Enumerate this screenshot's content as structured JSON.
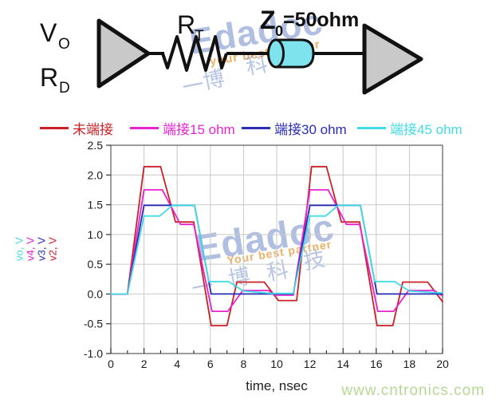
{
  "watermarks": {
    "brand": "Edadoc",
    "tagline_top": "your best partner",
    "tagline_chart": "Your best partner",
    "chinese_chars": [
      "一",
      "博",
      "科",
      "技"
    ],
    "site_link": "www.cntronics.com"
  },
  "circuit": {
    "driver_label_main": "V",
    "driver_label_sub": "O",
    "driver_res_main": "R",
    "driver_res_sub": "D",
    "series_res_main": "R",
    "series_res_sub": "T",
    "tline_main": "Z",
    "tline_sub": "0",
    "tline_value": "=50ohm",
    "colors": {
      "cylinder_fill": "#7fe3ee",
      "triangle_fill": "#c9c9c9"
    }
  },
  "chart_data": {
    "type": "line",
    "title": "",
    "xlabel": "time, nsec",
    "ylabel": "vo, v4, v3, v2 (V)",
    "xlim": [
      0,
      20
    ],
    "ylim": [
      -1.0,
      2.5
    ],
    "x_ticks": [
      0,
      2,
      4,
      6,
      8,
      10,
      12,
      14,
      16,
      18,
      20
    ],
    "y_ticks": [
      "2.5",
      "2.0",
      "1.5",
      "1.0",
      "0.5",
      "0.0",
      "-0.5",
      "-1.0"
    ],
    "grid": true,
    "legend_position": "top",
    "legend": [
      {
        "label": "未端接",
        "color": "#cb2026"
      },
      {
        "label": "端接15 ohm",
        "color": "#e723ce"
      },
      {
        "label": "端接30 ohm",
        "color": "#2b2cb4"
      },
      {
        "label": "端接45 ohm",
        "color": "#41dce4"
      }
    ],
    "y_axis_labels": [
      {
        "text": "vo, V",
        "color": "#41dce4"
      },
      {
        "text": "v4, V",
        "color": "#e723ce"
      },
      {
        "text": "v3, V",
        "color": "#2b2cb4"
      },
      {
        "text": "v2, V",
        "color": "#cb2026"
      }
    ],
    "series": [
      {
        "id": "v2",
        "name": "未端接",
        "color": "#cb2026",
        "points": [
          [
            0,
            0
          ],
          [
            1,
            0
          ],
          [
            2,
            2.14
          ],
          [
            3,
            2.14
          ],
          [
            3.9,
            1.21
          ],
          [
            5,
            1.21
          ],
          [
            6.05,
            -0.53
          ],
          [
            7,
            -0.53
          ],
          [
            7.6,
            0.2
          ],
          [
            9.25,
            0.2
          ],
          [
            10.1,
            -0.11
          ],
          [
            11.2,
            -0.11
          ],
          [
            12.1,
            2.14
          ],
          [
            13,
            2.14
          ],
          [
            13.9,
            1.21
          ],
          [
            15,
            1.21
          ],
          [
            16.05,
            -0.53
          ],
          [
            17,
            -0.53
          ],
          [
            17.6,
            0.2
          ],
          [
            19.1,
            0.2
          ],
          [
            20,
            -0.13
          ]
        ]
      },
      {
        "id": "v4",
        "name": "端接15 ohm",
        "color": "#e723ce",
        "points": [
          [
            0,
            0
          ],
          [
            1,
            0
          ],
          [
            2,
            1.75
          ],
          [
            3.1,
            1.75
          ],
          [
            4.2,
            1.17
          ],
          [
            5,
            1.17
          ],
          [
            6.1,
            -0.29
          ],
          [
            7.05,
            -0.29
          ],
          [
            7.95,
            0.06
          ],
          [
            9.5,
            0.06
          ],
          [
            9.9,
            -0.02
          ],
          [
            11,
            -0.02
          ],
          [
            12,
            1.75
          ],
          [
            13.1,
            1.75
          ],
          [
            14.2,
            1.17
          ],
          [
            15,
            1.17
          ],
          [
            16.1,
            -0.29
          ],
          [
            17.05,
            -0.29
          ],
          [
            17.95,
            0.06
          ],
          [
            19.5,
            0.06
          ],
          [
            20,
            -0.03
          ]
        ]
      },
      {
        "id": "v3",
        "name": "端接30 ohm",
        "color": "#2b2cb4",
        "points": [
          [
            0,
            0
          ],
          [
            1,
            0
          ],
          [
            2,
            1.49
          ],
          [
            5.05,
            1.49
          ],
          [
            6.05,
            0
          ],
          [
            11,
            0
          ],
          [
            12,
            1.49
          ],
          [
            15.05,
            1.49
          ],
          [
            16.05,
            0
          ],
          [
            20,
            0
          ]
        ]
      },
      {
        "id": "vo",
        "name": "端接45 ohm",
        "color": "#41dce4",
        "points": [
          [
            0,
            0
          ],
          [
            1,
            0
          ],
          [
            2,
            1.31
          ],
          [
            2.95,
            1.31
          ],
          [
            3.7,
            1.49
          ],
          [
            5.05,
            1.49
          ],
          [
            5.91,
            0.21
          ],
          [
            7.1,
            0.21
          ],
          [
            8,
            0.05
          ],
          [
            9.7,
            0.01
          ],
          [
            11,
            0.01
          ],
          [
            12,
            1.31
          ],
          [
            12.95,
            1.31
          ],
          [
            13.7,
            1.49
          ],
          [
            15.05,
            1.49
          ],
          [
            15.91,
            0.21
          ],
          [
            17.1,
            0.21
          ],
          [
            18,
            0.05
          ],
          [
            19.7,
            0.02
          ],
          [
            20,
            0.02
          ]
        ]
      }
    ]
  }
}
